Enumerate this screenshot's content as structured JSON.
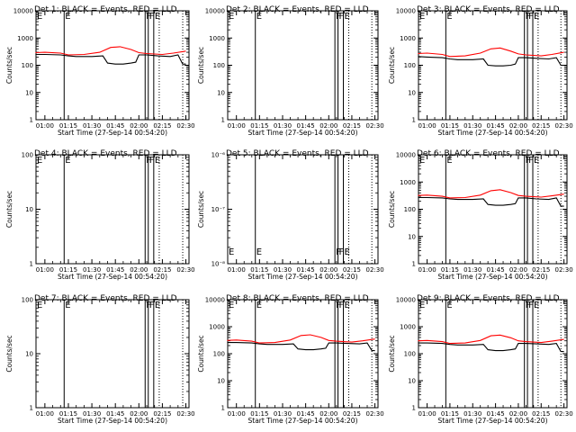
{
  "figure": {
    "x_tick_labels": [
      "01:00",
      "01:15",
      "01:30",
      "01:45",
      "02:00",
      "02:15",
      "02:30"
    ],
    "xlabel": "Start Time (27-Sep-14 00:54:20)",
    "ylabel": "Counts/sec",
    "colors": {
      "events": "#000000",
      "lld": "#ff0000",
      "axes": "#000000",
      "background": "#ffffff"
    }
  },
  "chart_data": [
    {
      "type": "line",
      "panel": 1,
      "title": "Det 1: BLACK = Events, RED = LLD",
      "yscale": "log",
      "ylim": [
        1,
        10000
      ],
      "y_tick_labels": [
        "1",
        "10",
        "100",
        "1000",
        "10000"
      ],
      "flag_labels": [
        "E",
        "F",
        "F",
        "E"
      ],
      "series": [
        {
          "color": "#000000",
          "x": [
            "00:54",
            "01:00",
            "01:10",
            "01:15",
            "01:20",
            "01:30",
            "01:37",
            "01:40",
            "01:45",
            "01:50",
            "01:55",
            "01:58",
            "02:00",
            "02:05",
            "02:12",
            "02:20",
            "02:25",
            "02:28",
            "02:30"
          ],
          "y": [
            250,
            250,
            240,
            220,
            210,
            210,
            220,
            120,
            110,
            110,
            120,
            130,
            240,
            240,
            220,
            210,
            240,
            110,
            110
          ]
        },
        {
          "color": "#ff0000",
          "x": [
            "00:54",
            "01:00",
            "01:10",
            "01:15",
            "01:25",
            "01:35",
            "01:42",
            "01:48",
            "01:55",
            "02:00",
            "02:05",
            "02:15",
            "02:22",
            "02:30"
          ],
          "y": [
            290,
            300,
            280,
            240,
            250,
            300,
            450,
            480,
            380,
            290,
            270,
            250,
            280,
            330
          ]
        }
      ]
    },
    {
      "type": "line",
      "panel": 2,
      "title": "Det 2: BLACK = Events, RED = LLD",
      "yscale": "log",
      "ylim": [
        1,
        10000
      ],
      "y_tick_labels": [
        "1",
        "10",
        "100",
        "1000",
        "10000"
      ],
      "flag_labels": [
        "E",
        "F",
        "F",
        "E"
      ],
      "series": []
    },
    {
      "type": "line",
      "panel": 3,
      "title": "Det 3: BLACK = Events, RED = LLD",
      "yscale": "log",
      "ylim": [
        1,
        10000
      ],
      "y_tick_labels": [
        "1",
        "10",
        "100",
        "1000",
        "10000"
      ],
      "flag_labels": [
        "E",
        "F",
        "F",
        "E"
      ],
      "series": [
        {
          "color": "#000000",
          "x": [
            "00:54",
            "01:00",
            "01:10",
            "01:15",
            "01:20",
            "01:30",
            "01:37",
            "01:40",
            "01:45",
            "01:50",
            "01:55",
            "01:58",
            "02:00",
            "02:05",
            "02:12",
            "02:20",
            "02:25",
            "02:28",
            "02:30"
          ],
          "y": [
            210,
            200,
            190,
            170,
            160,
            160,
            170,
            100,
            95,
            95,
            100,
            110,
            190,
            190,
            180,
            170,
            190,
            100,
            100
          ]
        },
        {
          "color": "#ff0000",
          "x": [
            "00:54",
            "01:00",
            "01:10",
            "01:15",
            "01:25",
            "01:35",
            "01:42",
            "01:48",
            "01:55",
            "02:00",
            "02:05",
            "02:15",
            "02:22",
            "02:30"
          ],
          "y": [
            270,
            280,
            250,
            210,
            220,
            280,
            400,
            430,
            330,
            260,
            240,
            220,
            250,
            300
          ]
        }
      ]
    },
    {
      "type": "line",
      "panel": 4,
      "title": "Det 4: BLACK = Events, RED = LLD",
      "yscale": "log",
      "ylim": [
        1,
        100
      ],
      "y_tick_labels": [
        "1",
        "10",
        "100"
      ],
      "flag_labels": [
        "E",
        "F",
        "F",
        "E"
      ],
      "series": []
    },
    {
      "type": "line",
      "panel": 5,
      "title": "Det 5: BLACK = Events, RED = LLD",
      "yscale": "log",
      "ylim": [
        1e-08,
        1e-06
      ],
      "y_tick_labels": [
        "10⁻⁸",
        "10⁻⁷",
        "10⁻⁶"
      ],
      "flag_labels": [
        "E",
        "F",
        "F",
        "E"
      ],
      "series": []
    },
    {
      "type": "line",
      "panel": 6,
      "title": "Det 6: BLACK = Events, RED = LLD",
      "yscale": "log",
      "ylim": [
        1,
        10000
      ],
      "y_tick_labels": [
        "1",
        "10",
        "100",
        "1000",
        "10000"
      ],
      "flag_labels": [
        "E",
        "F",
        "F",
        "E"
      ],
      "series": [
        {
          "color": "#000000",
          "x": [
            "00:54",
            "01:00",
            "01:10",
            "01:15",
            "01:20",
            "01:30",
            "01:37",
            "01:40",
            "01:45",
            "01:50",
            "01:55",
            "01:58",
            "02:00",
            "02:05",
            "02:12",
            "02:20",
            "02:25",
            "02:28",
            "02:30"
          ],
          "y": [
            270,
            270,
            260,
            240,
            230,
            230,
            240,
            150,
            140,
            140,
            150,
            160,
            260,
            260,
            240,
            230,
            260,
            130,
            130
          ]
        },
        {
          "color": "#ff0000",
          "x": [
            "00:54",
            "01:00",
            "01:10",
            "01:15",
            "01:25",
            "01:35",
            "01:42",
            "01:48",
            "01:55",
            "02:00",
            "02:05",
            "02:15",
            "02:22",
            "02:30"
          ],
          "y": [
            320,
            330,
            300,
            260,
            270,
            330,
            480,
            520,
            410,
            320,
            300,
            280,
            310,
            360
          ]
        }
      ]
    },
    {
      "type": "line",
      "panel": 7,
      "title": "Det 7: BLACK = Events, RED = LLD",
      "yscale": "log",
      "ylim": [
        1,
        100
      ],
      "y_tick_labels": [
        "1",
        "10",
        "100"
      ],
      "flag_labels": [
        "E",
        "F",
        "F",
        "E"
      ],
      "series": []
    },
    {
      "type": "line",
      "panel": 8,
      "title": "Det 8: BLACK = Events, RED = LLD",
      "yscale": "log",
      "ylim": [
        1,
        10000
      ],
      "y_tick_labels": [
        "1",
        "10",
        "100",
        "1000",
        "10000"
      ],
      "flag_labels": [
        "E",
        "F",
        "F",
        "E"
      ],
      "series": [
        {
          "color": "#000000",
          "x": [
            "00:54",
            "01:00",
            "01:10",
            "01:15",
            "01:20",
            "01:30",
            "01:37",
            "01:40",
            "01:45",
            "01:50",
            "01:55",
            "01:58",
            "02:00",
            "02:05",
            "02:12",
            "02:20",
            "02:25",
            "02:28",
            "02:30"
          ],
          "y": [
            260,
            260,
            250,
            230,
            220,
            220,
            230,
            150,
            140,
            140,
            150,
            160,
            250,
            250,
            240,
            230,
            250,
            130,
            130
          ]
        },
        {
          "color": "#ff0000",
          "x": [
            "00:54",
            "01:00",
            "01:10",
            "01:15",
            "01:25",
            "01:35",
            "01:42",
            "01:48",
            "01:55",
            "02:00",
            "02:05",
            "02:15",
            "02:22",
            "02:30"
          ],
          "y": [
            310,
            320,
            290,
            250,
            260,
            320,
            470,
            500,
            400,
            310,
            290,
            270,
            300,
            350
          ]
        }
      ]
    },
    {
      "type": "line",
      "panel": 9,
      "title": "Det 9: BLACK = Events, RED = LLD",
      "yscale": "log",
      "ylim": [
        1,
        10000
      ],
      "y_tick_labels": [
        "1",
        "10",
        "100",
        "1000",
        "10000"
      ],
      "flag_labels": [
        "E",
        "F",
        "F",
        "E"
      ],
      "series": [
        {
          "color": "#000000",
          "x": [
            "00:54",
            "01:00",
            "01:10",
            "01:15",
            "01:20",
            "01:30",
            "01:37",
            "01:40",
            "01:45",
            "01:50",
            "01:55",
            "01:58",
            "02:00",
            "02:05",
            "02:12",
            "02:20",
            "02:25",
            "02:28",
            "02:30"
          ],
          "y": [
            250,
            250,
            240,
            220,
            210,
            210,
            220,
            140,
            130,
            130,
            140,
            150,
            240,
            240,
            230,
            220,
            240,
            120,
            120
          ]
        },
        {
          "color": "#ff0000",
          "x": [
            "00:54",
            "01:00",
            "01:10",
            "01:15",
            "01:25",
            "01:35",
            "01:42",
            "01:48",
            "01:55",
            "02:00",
            "02:05",
            "02:15",
            "02:22",
            "02:30"
          ],
          "y": [
            300,
            310,
            280,
            240,
            250,
            310,
            460,
            490,
            390,
            300,
            280,
            260,
            290,
            340
          ]
        }
      ]
    }
  ]
}
